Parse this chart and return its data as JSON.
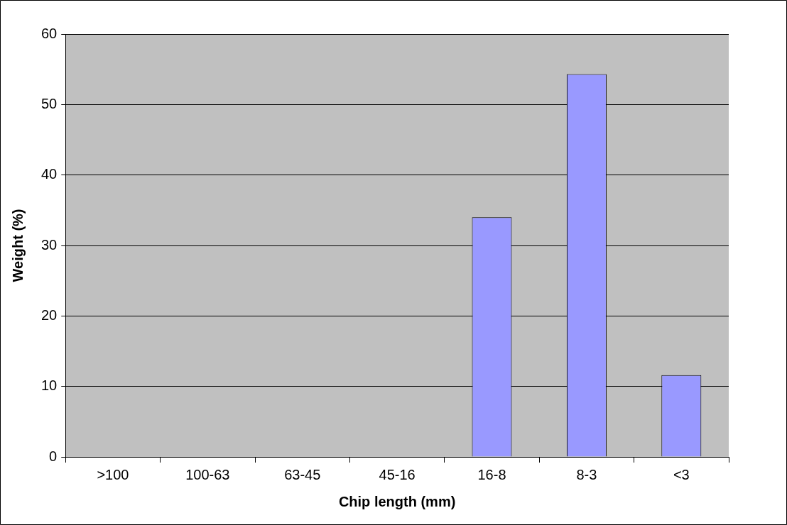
{
  "chart_data": {
    "type": "bar",
    "xlabel": "Chip length (mm)",
    "ylabel": "Weight (%)",
    "categories": [
      ">100",
      "100-63",
      "63-45",
      "45-16",
      "16-8",
      "8-3",
      "<3"
    ],
    "values": [
      0,
      0,
      0,
      0,
      34.0,
      54.3,
      11.6
    ],
    "color": "#9999ff",
    "ylim": [
      0,
      60
    ],
    "yticks": [
      0,
      10,
      20,
      30,
      40,
      50,
      60
    ],
    "grid": "y",
    "legend": false
  }
}
